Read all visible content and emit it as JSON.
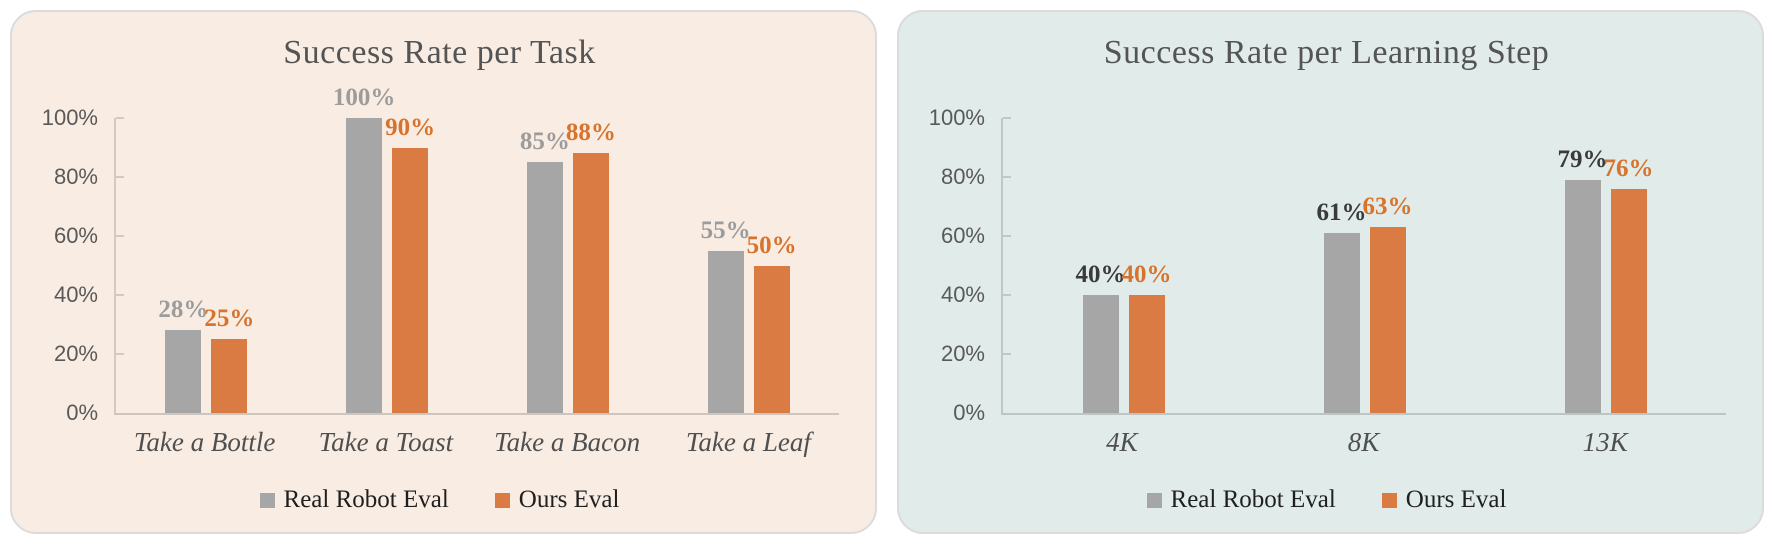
{
  "chart_data": [
    {
      "type": "bar",
      "title": "Success Rate per Task",
      "categories": [
        "Take a Bottle",
        "Take a Toast",
        "Take a Bacon",
        "Take a Leaf"
      ],
      "series": [
        {
          "name": "Real Robot Eval",
          "values": [
            28,
            100,
            85,
            55
          ],
          "bar_color": "#A6A6A6",
          "value_label_color": "#9C9C9C",
          "data_labels": [
            "28%",
            "100%",
            "85%",
            "55%"
          ]
        },
        {
          "name": "Ours Eval",
          "values": [
            25,
            90,
            88,
            50
          ],
          "bar_color": "#D97B42",
          "value_label_color": "#D8732C",
          "data_labels": [
            "25%",
            "90%",
            "88%",
            "50%"
          ]
        }
      ],
      "xlabel": "",
      "ylabel": "",
      "ylim": [
        0,
        100
      ],
      "y_tick_labels": [
        "0%",
        "20%",
        "40%",
        "60%",
        "80%",
        "100%"
      ],
      "grid": false,
      "legend_position": "bottom",
      "panel_bg": "#F9ECE3"
    },
    {
      "type": "bar",
      "title": "Success Rate per Learning Step",
      "categories": [
        "4K",
        "8K",
        "13K"
      ],
      "series": [
        {
          "name": "Real Robot Eval",
          "values": [
            40,
            61,
            79
          ],
          "bar_color": "#A6A6A6",
          "value_label_color": "#3A3A3A",
          "data_labels": [
            "40%",
            "61%",
            "79%"
          ]
        },
        {
          "name": "Ours Eval",
          "values": [
            40,
            63,
            76
          ],
          "bar_color": "#D97B42",
          "value_label_color": "#D8732C",
          "data_labels": [
            "40%",
            "63%",
            "76%"
          ]
        }
      ],
      "xlabel": "",
      "ylabel": "",
      "ylim": [
        0,
        100
      ],
      "y_tick_labels": [
        "0%",
        "20%",
        "40%",
        "60%",
        "80%",
        "100%"
      ],
      "grid": false,
      "legend_position": "bottom",
      "panel_bg": "#E0EBEA"
    }
  ]
}
